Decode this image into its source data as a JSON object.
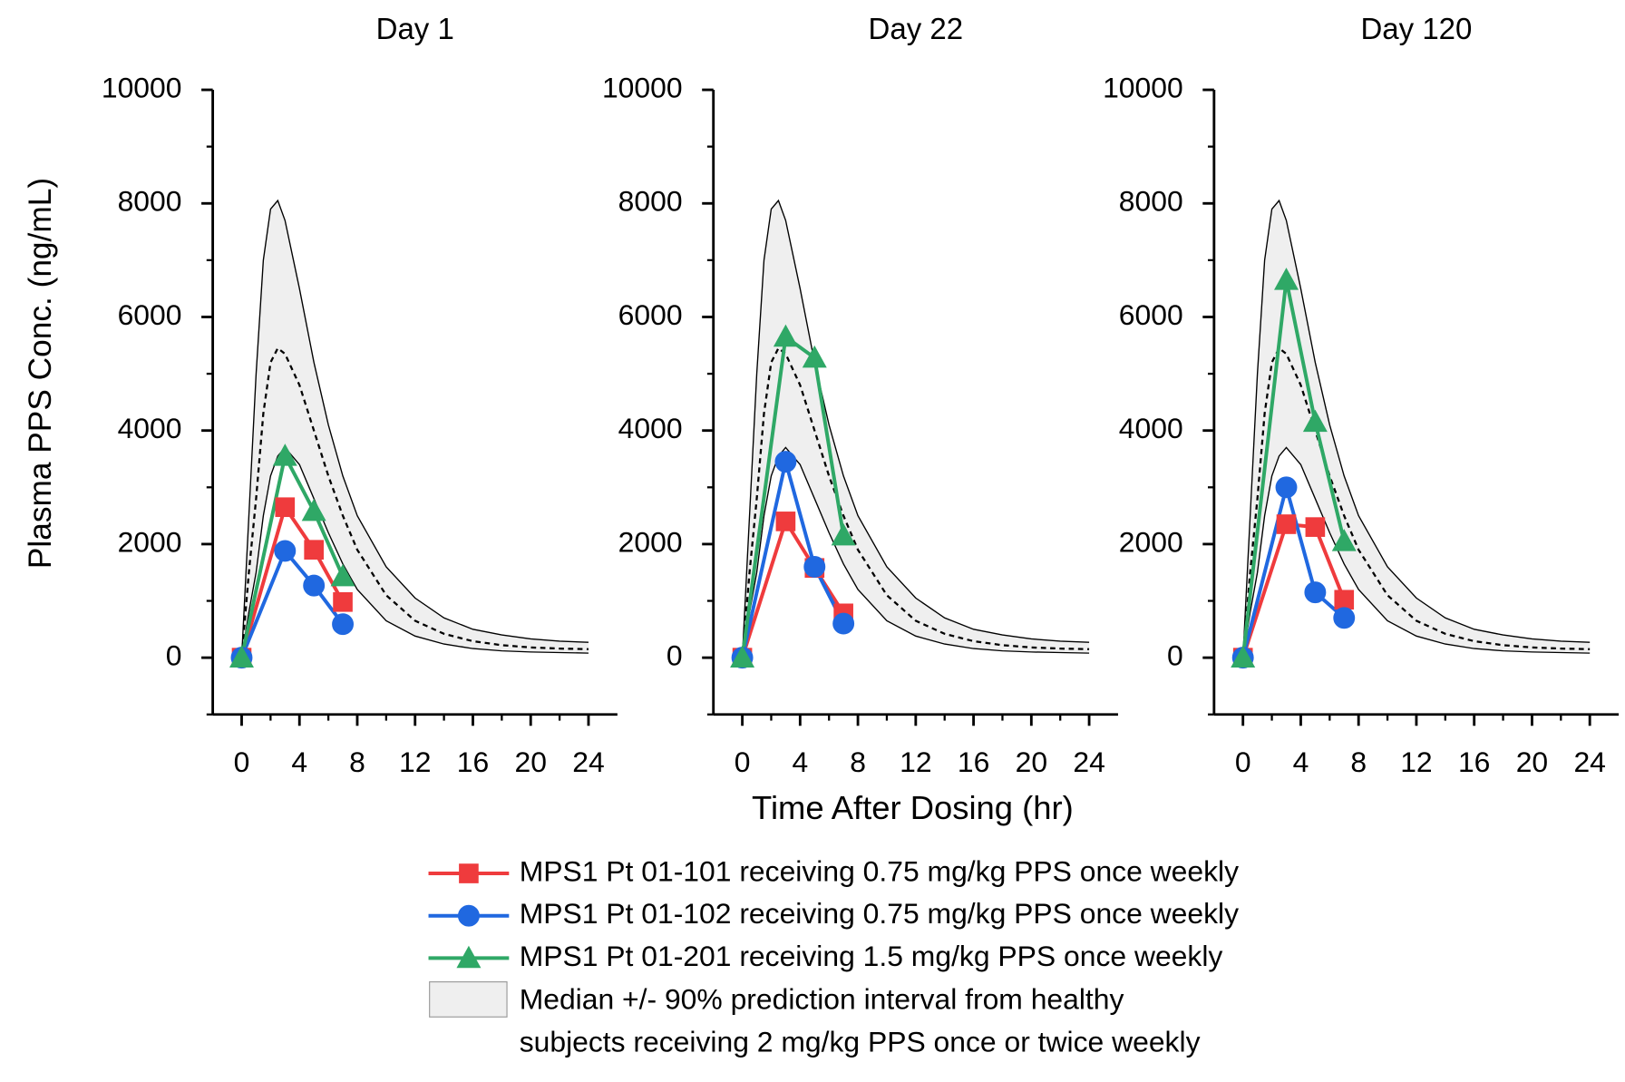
{
  "chart_data": [
    {
      "type": "line",
      "title": "Day 1",
      "ylabel": "Plasma PPS Conc. (ng/mL)",
      "x": [
        0,
        3,
        5,
        7
      ],
      "series": [
        {
          "name": "MPS1 Pt 01-101 receiving 0.75 mg/kg PPS once weekly",
          "color": "#ef3b3d",
          "marker": "square",
          "values": [
            0,
            2650,
            1900,
            980
          ]
        },
        {
          "name": "MPS1 Pt 01-102 receiving 0.75 mg/kg PPS once weekly",
          "color": "#2068e0",
          "marker": "circle",
          "values": [
            0,
            1880,
            1270,
            590
          ]
        },
        {
          "name": "MPS1 Pt 01-201 receiving 1.5 mg/kg PPS once weekly",
          "color": "#2fa866",
          "marker": "triangle",
          "values": [
            0,
            3550,
            2580,
            1430
          ]
        }
      ],
      "band": {
        "name": [
          "Median +/- 90% prediction interval from healthy",
          "subjects receiving 2 mg/kg PPS once or twice weekly"
        ],
        "color": "#efefef",
        "x": [
          0,
          0.5,
          1,
          1.5,
          2,
          2.5,
          3,
          4,
          5,
          6,
          7,
          8,
          10,
          12,
          14,
          16,
          18,
          20,
          22,
          24
        ],
        "upper": [
          0,
          2500,
          5000,
          7000,
          7900,
          8050,
          7700,
          6500,
          5200,
          4100,
          3200,
          2500,
          1600,
          1050,
          700,
          500,
          400,
          330,
          290,
          270
        ],
        "median": [
          0,
          1500,
          2800,
          4300,
          5200,
          5450,
          5350,
          4800,
          4000,
          3200,
          2500,
          1900,
          1100,
          650,
          420,
          290,
          220,
          180,
          160,
          150
        ],
        "lower": [
          0,
          800,
          1500,
          2500,
          3200,
          3550,
          3700,
          3400,
          2800,
          2200,
          1650,
          1200,
          650,
          380,
          240,
          160,
          120,
          100,
          90,
          80
        ]
      },
      "xlim": [
        -2,
        26
      ],
      "ylim": [
        -1000,
        10000
      ],
      "xticks": [
        0,
        4,
        8,
        12,
        16,
        20,
        24
      ],
      "yticks": [
        0,
        2000,
        4000,
        6000,
        8000,
        10000
      ],
      "xminorticks": [
        2,
        6,
        10,
        14,
        18,
        22
      ],
      "yminorticks": [
        -1000,
        1000,
        3000,
        5000,
        7000,
        9000
      ]
    },
    {
      "type": "line",
      "title": "Day 22",
      "xlabel": "Time After Dosing (hr)",
      "x": [
        0,
        3,
        5,
        7
      ],
      "series": [
        {
          "color": "#ef3b3d",
          "marker": "square",
          "values": [
            0,
            2400,
            1580,
            780
          ]
        },
        {
          "color": "#2068e0",
          "marker": "circle",
          "values": [
            0,
            3450,
            1600,
            600
          ]
        },
        {
          "color": "#2fa866",
          "marker": "triangle",
          "values": [
            0,
            5650,
            5280,
            2150
          ]
        }
      ],
      "band": {
        "color": "#efefef",
        "x": [
          0,
          0.5,
          1,
          1.5,
          2,
          2.5,
          3,
          4,
          5,
          6,
          7,
          8,
          10,
          12,
          14,
          16,
          18,
          20,
          22,
          24
        ],
        "upper": [
          0,
          2500,
          5000,
          7000,
          7900,
          8050,
          7700,
          6500,
          5200,
          4100,
          3200,
          2500,
          1600,
          1050,
          700,
          500,
          400,
          330,
          290,
          270
        ],
        "median": [
          0,
          1500,
          2800,
          4300,
          5200,
          5450,
          5350,
          4800,
          4000,
          3200,
          2500,
          1900,
          1100,
          650,
          420,
          290,
          220,
          180,
          160,
          150
        ],
        "lower": [
          0,
          800,
          1500,
          2500,
          3200,
          3550,
          3700,
          3400,
          2800,
          2200,
          1650,
          1200,
          650,
          380,
          240,
          160,
          120,
          100,
          90,
          80
        ]
      },
      "xlim": [
        -2,
        26
      ],
      "ylim": [
        -1000,
        10000
      ],
      "xticks": [
        0,
        4,
        8,
        12,
        16,
        20,
        24
      ],
      "yticks": [
        0,
        2000,
        4000,
        6000,
        8000,
        10000
      ],
      "xminorticks": [
        2,
        6,
        10,
        14,
        18,
        22
      ],
      "yminorticks": [
        -1000,
        1000,
        3000,
        5000,
        7000,
        9000
      ]
    },
    {
      "type": "line",
      "title": "Day 120",
      "x": [
        0,
        3,
        5,
        7
      ],
      "series": [
        {
          "color": "#ef3b3d",
          "marker": "square",
          "values": [
            0,
            2350,
            2300,
            1020
          ]
        },
        {
          "color": "#2068e0",
          "marker": "circle",
          "values": [
            0,
            3000,
            1150,
            700
          ]
        },
        {
          "color": "#2fa866",
          "marker": "triangle",
          "values": [
            0,
            6650,
            4150,
            2050
          ]
        }
      ],
      "band": {
        "color": "#efefef",
        "x": [
          0,
          0.5,
          1,
          1.5,
          2,
          2.5,
          3,
          4,
          5,
          6,
          7,
          8,
          10,
          12,
          14,
          16,
          18,
          20,
          22,
          24
        ],
        "upper": [
          0,
          2500,
          5000,
          7000,
          7900,
          8050,
          7700,
          6500,
          5200,
          4100,
          3200,
          2500,
          1600,
          1050,
          700,
          500,
          400,
          330,
          290,
          270
        ],
        "median": [
          0,
          1500,
          2800,
          4300,
          5200,
          5450,
          5350,
          4800,
          4000,
          3200,
          2500,
          1900,
          1100,
          650,
          420,
          290,
          220,
          180,
          160,
          150
        ],
        "lower": [
          0,
          800,
          1500,
          2500,
          3200,
          3550,
          3700,
          3400,
          2800,
          2200,
          1650,
          1200,
          650,
          380,
          240,
          160,
          120,
          100,
          90,
          80
        ]
      },
      "xlim": [
        -2,
        26
      ],
      "ylim": [
        -1000,
        10000
      ],
      "xticks": [
        0,
        4,
        8,
        12,
        16,
        20,
        24
      ],
      "yticks": [
        0,
        2000,
        4000,
        6000,
        8000,
        10000
      ],
      "xminorticks": [
        2,
        6,
        10,
        14,
        18,
        22
      ],
      "yminorticks": [
        -1000,
        1000,
        3000,
        5000,
        7000,
        9000
      ]
    }
  ]
}
